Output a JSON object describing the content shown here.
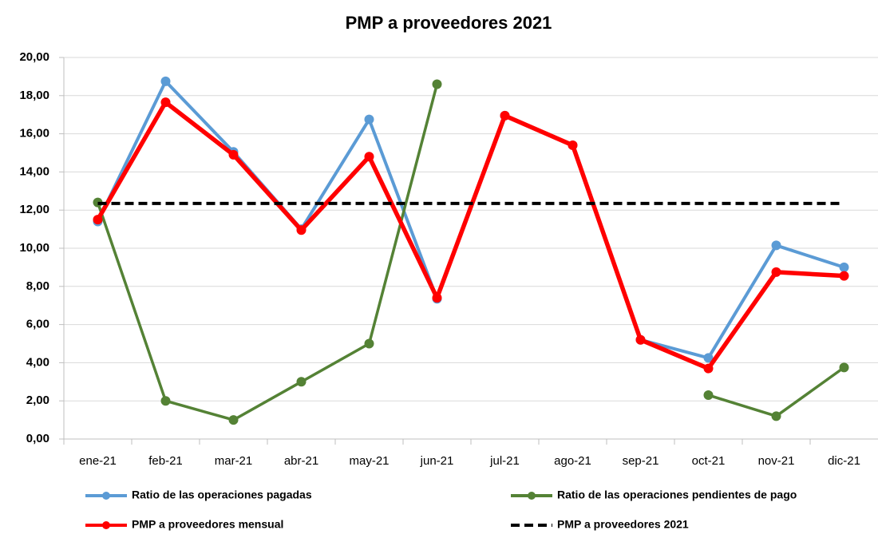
{
  "chart_data": {
    "type": "line",
    "title": "PMP a proveedores 2021",
    "categories": [
      "ene-21",
      "feb-21",
      "mar-21",
      "abr-21",
      "may-21",
      "jun-21",
      "jul-21",
      "ago-21",
      "sep-21",
      "oct-21",
      "nov-21",
      "dic-21"
    ],
    "series": [
      {
        "name": "Ratio de las operaciones pagadas",
        "color": "#5b9bd5",
        "linestyle": "solid",
        "markers": true,
        "values": [
          11.4,
          18.75,
          15.05,
          11.0,
          16.75,
          7.35,
          16.95,
          15.4,
          5.2,
          4.25,
          10.15,
          9.0
        ]
      },
      {
        "name": "Ratio de las operaciones pendientes de pago",
        "color": "#548235",
        "linestyle": "solid",
        "markers": true,
        "values": [
          12.4,
          2.0,
          1.0,
          3.0,
          5.0,
          18.6,
          null,
          null,
          null,
          2.3,
          1.2,
          3.75
        ]
      },
      {
        "name": "PMP a proveedores mensual",
        "color": "#ff0000",
        "linestyle": "solid",
        "markers": true,
        "values": [
          11.5,
          17.65,
          14.9,
          10.95,
          14.8,
          7.4,
          16.95,
          15.4,
          5.2,
          3.7,
          8.75,
          8.55
        ]
      },
      {
        "name": "PMP a proveedores 2021",
        "color": "#000000",
        "linestyle": "dashed",
        "markers": false,
        "values": [
          12.35,
          12.35,
          12.35,
          12.35,
          12.35,
          12.35,
          12.35,
          12.35,
          12.35,
          12.35,
          12.35,
          12.35
        ]
      }
    ],
    "ylim": [
      0,
      20
    ],
    "yticks": [
      {
        "value": 0,
        "label": "0,00"
      },
      {
        "value": 2,
        "label": "2,00"
      },
      {
        "value": 4,
        "label": "4,00"
      },
      {
        "value": 6,
        "label": "6,00"
      },
      {
        "value": 8,
        "label": "8,00"
      },
      {
        "value": 10,
        "label": "10,00"
      },
      {
        "value": 12,
        "label": "12,00"
      },
      {
        "value": 14,
        "label": "14,00"
      },
      {
        "value": 16,
        "label": "16,00"
      },
      {
        "value": 18,
        "label": "18,00"
      },
      {
        "value": 20,
        "label": "20,00"
      }
    ],
    "grid": true,
    "legend": "bottom"
  }
}
